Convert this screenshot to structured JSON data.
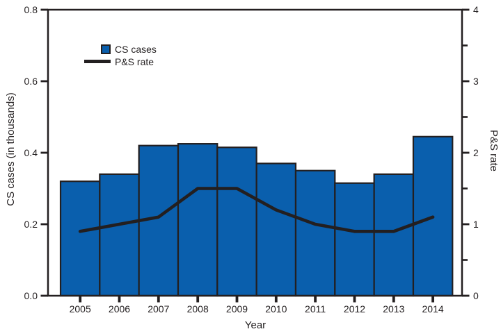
{
  "chart_data": {
    "type": "bar",
    "subtype": "bar-line-combo",
    "title": "",
    "categories": [
      "2005",
      "2006",
      "2007",
      "2008",
      "2009",
      "2010",
      "2011",
      "2012",
      "2013",
      "2014"
    ],
    "series": [
      {
        "name": "CS cases",
        "type": "bar",
        "axis": "left",
        "values": [
          0.32,
          0.34,
          0.42,
          0.425,
          0.415,
          0.37,
          0.35,
          0.315,
          0.34,
          0.445
        ]
      },
      {
        "name": "P&S rate",
        "type": "line",
        "axis": "right",
        "values": [
          0.9,
          1.0,
          1.1,
          1.5,
          1.5,
          1.2,
          1.0,
          0.9,
          0.9,
          1.1
        ]
      }
    ],
    "left_axis": {
      "label": "CS cases (in thousands)",
      "min": 0,
      "max": 0.8,
      "tick_labels": [
        "0.0",
        "0.2",
        "0.4",
        "0.6",
        "0.8"
      ]
    },
    "right_axis": {
      "label": "P&S rate",
      "min": 0,
      "max": 4,
      "tick_labels": [
        "0",
        "1",
        "2",
        "3",
        "4"
      ],
      "minor_ticks": [
        0.5,
        1.5,
        2.5,
        3.5
      ]
    },
    "x_axis": {
      "label": "Year"
    },
    "legend": [
      {
        "label": "CS cases",
        "swatch": "square"
      },
      {
        "label": "P&S rate",
        "swatch": "line"
      }
    ],
    "grid": false,
    "legend_position": "upper-left-inside"
  },
  "colors": {
    "bar_fill": "#0A5FAD",
    "ink": "#231F20",
    "background": "#FFFFFF"
  }
}
